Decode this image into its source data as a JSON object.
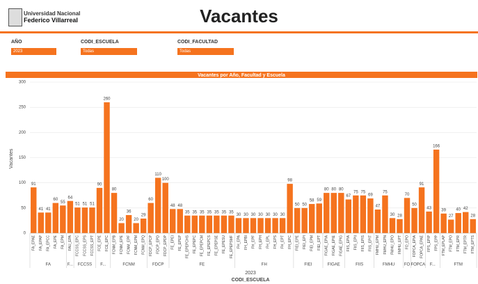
{
  "header": {
    "university_line1": "Universidad Nacional",
    "university_line2": "Federico Villarreal",
    "title": "Vacantes"
  },
  "filters": [
    {
      "label": "AÑO",
      "value": "2023"
    },
    {
      "label": "CODI_ESCUELA",
      "value": "Todas"
    },
    {
      "label": "CODI_FACULTAD",
      "value": "Todas"
    }
  ],
  "chart_data": {
    "type": "bar",
    "title": "Vacantes por Año, Facultad y Escuela",
    "ylabel": "Vacantes",
    "xlabel": "CODI_ESCUELA",
    "year": "2023",
    "color": "#f5731e",
    "ylim": [
      0,
      300
    ],
    "yticks": [
      0,
      50,
      100,
      150,
      200,
      250,
      300
    ],
    "grid": true,
    "groups": [
      {
        "name": "FA",
        "categories": [
          "FA_EPAE",
          "FA_EPAP",
          "FA_EPCC",
          "FA_EPE",
          "FA_EPM"
        ],
        "values": [
          91,
          41,
          41,
          60,
          55
        ]
      },
      {
        "name": "F...",
        "categories": [
          "FAU_EPA"
        ],
        "values": [
          64
        ]
      },
      {
        "name": "FCCSS",
        "categories": [
          "FCCSS_EPC",
          "FCCSS_EPS",
          "FCCSS_EPT"
        ],
        "values": [
          51,
          51,
          51
        ]
      },
      {
        "name": "F...",
        "categories": [
          "FCE_EPE",
          "FCE_EPC"
        ],
        "values": [
          90,
          260
        ]
      },
      {
        "name": "FCNM",
        "categories": [
          "FCNM_EPB",
          "FCNM_EPE",
          "FCNM_EPF",
          "FCNM_EPM",
          "FCNM_EPQ"
        ],
        "values": [
          80,
          20,
          36,
          20,
          29
        ]
      },
      {
        "name": "FDCP",
        "categories": [
          "FDCP_EPCP",
          "FDCP_EPD",
          "FDCP_EPDP"
        ],
        "values": [
          60,
          110,
          100
        ]
      },
      {
        "name": "FE",
        "categories": [
          "FE_EPEI",
          "FE_EPEP",
          "FE_EPEPCHS",
          "FE_EPEPC",
          "FE_EPEPCM",
          "FE_EPEPCS",
          "FE_EPEPSE",
          "FE_EPESU",
          "FE_EPEPSMF"
        ],
        "values": [
          48,
          48,
          35,
          35,
          35,
          35,
          35,
          35,
          35
        ]
      },
      {
        "name": "FH",
        "categories": [
          "FH_EPA",
          "FH_EPBI",
          "FH_EPF",
          "FH_EPH",
          "FH_EPL",
          "FH_EPS",
          "FH_EPT",
          "FH_EPC"
        ],
        "values": [
          30,
          30,
          30,
          30,
          30,
          30,
          30,
          98
        ]
      },
      {
        "name": "FIEI",
        "categories": [
          "FIEI_EPE",
          "FIEI_EPI",
          "FIEI_EPM",
          "FIEI_EPT"
        ],
        "values": [
          50,
          50,
          58,
          59
        ]
      },
      {
        "name": "FIGAE",
        "categories": [
          "FIGAE_EPIA",
          "FIGAE_EPIE",
          "FIGAE_EPIG"
        ],
        "values": [
          80,
          80,
          80
        ]
      },
      {
        "name": "FIIS",
        "categories": [
          "FIIS_EPIA",
          "FIIS_EPII",
          "FIIS_EPIS",
          "FIIS_EPIT"
        ],
        "values": [
          67,
          75,
          75,
          69
        ]
      },
      {
        "name": "FMHU",
        "categories": [
          "FMHU_EPM",
          "FMHU_EPN",
          "FMHU_EPO",
          "FMHU_EPT"
        ],
        "values": [
          47,
          75,
          30,
          28
        ]
      },
      {
        "name": "FO",
        "categories": [
          "FO_EPO"
        ],
        "values": [
          70
        ]
      },
      {
        "name": "FOPCA",
        "categories": [
          "FOPCA_EPIA",
          "FOPCA_EPAE"
        ],
        "values": [
          50,
          91
        ]
      },
      {
        "name": "F...",
        "categories": [
          "FPS_EPIP",
          "FPS_EPP"
        ],
        "values": [
          43,
          166
        ]
      },
      {
        "name": "FTM",
        "categories": [
          "FTM_EPLAP",
          "FTM_EPO",
          "FTM_EPR",
          "FTM_EPTR",
          "FTM_EPTS"
        ],
        "values": [
          39,
          27,
          40,
          42,
          28
        ]
      }
    ]
  }
}
